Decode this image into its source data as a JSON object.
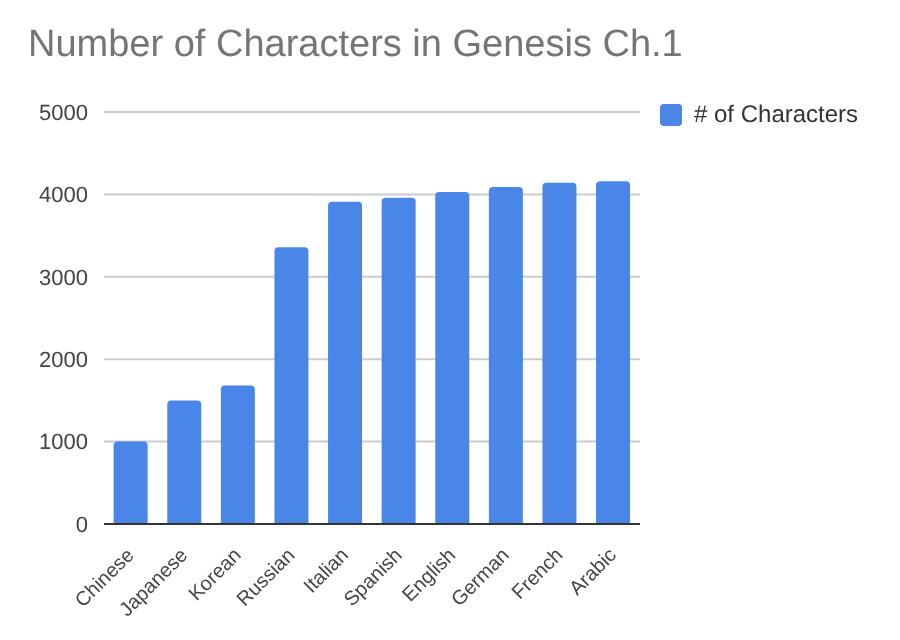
{
  "chart_data": {
    "type": "bar",
    "title": "Number of Characters in Genesis Ch.1",
    "categories": [
      "Chinese",
      "Japanese",
      "Korean",
      "Russian",
      "Italian",
      "Spanish",
      "English",
      "German",
      "French",
      "Arabic"
    ],
    "series": [
      {
        "name": "# of Characters",
        "color": "#4a86e8",
        "values": [
          1000,
          1500,
          1680,
          3360,
          3910,
          3960,
          4030,
          4090,
          4140,
          4160
        ]
      }
    ],
    "ylim": [
      0,
      5000
    ],
    "yticks": [
      0,
      1000,
      2000,
      3000,
      4000,
      5000
    ],
    "grid": "y",
    "legend": "top right"
  }
}
